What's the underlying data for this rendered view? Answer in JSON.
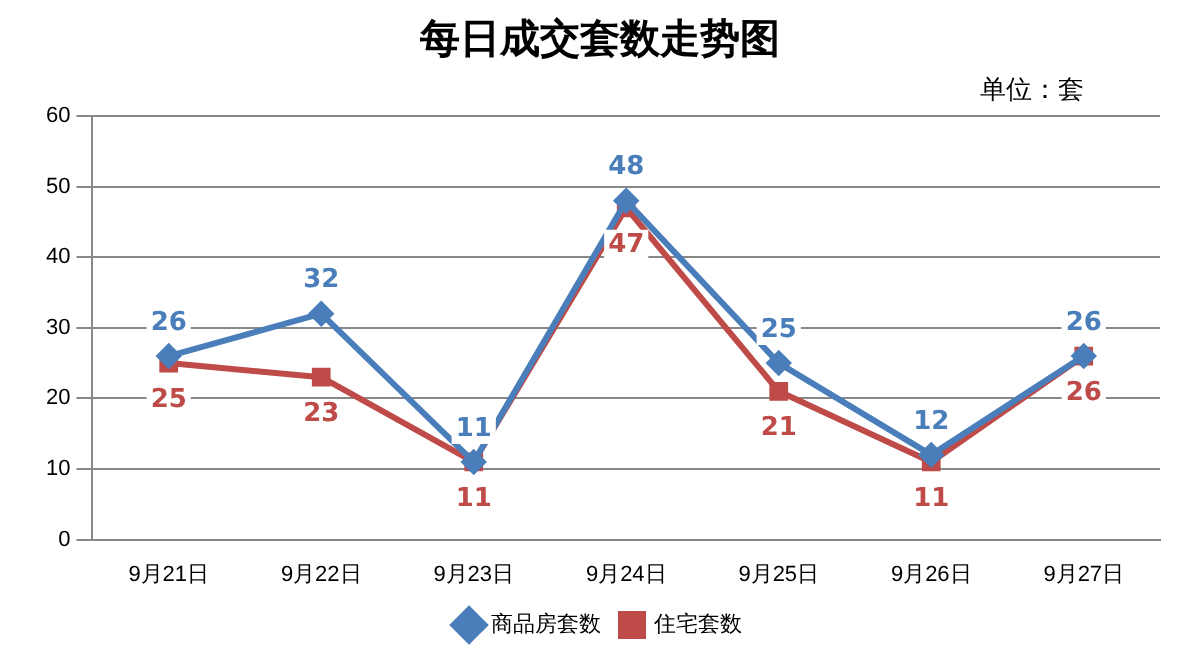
{
  "chart_data": {
    "type": "line",
    "title": "每日成交套数走势图",
    "annotations": [
      "单位：套"
    ],
    "categories": [
      "9月21日",
      "9月22日",
      "9月23日",
      "9月24日",
      "9月25日",
      "9月26日",
      "9月27日"
    ],
    "series": [
      {
        "name": "商品房套数",
        "color": "#4a7ebb",
        "marker": "diamond",
        "values": [
          26,
          32,
          11,
          48,
          25,
          12,
          26
        ]
      },
      {
        "name": "住宅套数",
        "color": "#be4b48",
        "marker": "square",
        "values": [
          25,
          23,
          11,
          47,
          21,
          11,
          26
        ]
      }
    ],
    "ylim": [
      0,
      60
    ],
    "yticks": [
      0,
      10,
      20,
      30,
      40,
      50,
      60
    ],
    "grid": "y",
    "legend": "bottom",
    "data_labels": true,
    "line_style": "solid"
  }
}
